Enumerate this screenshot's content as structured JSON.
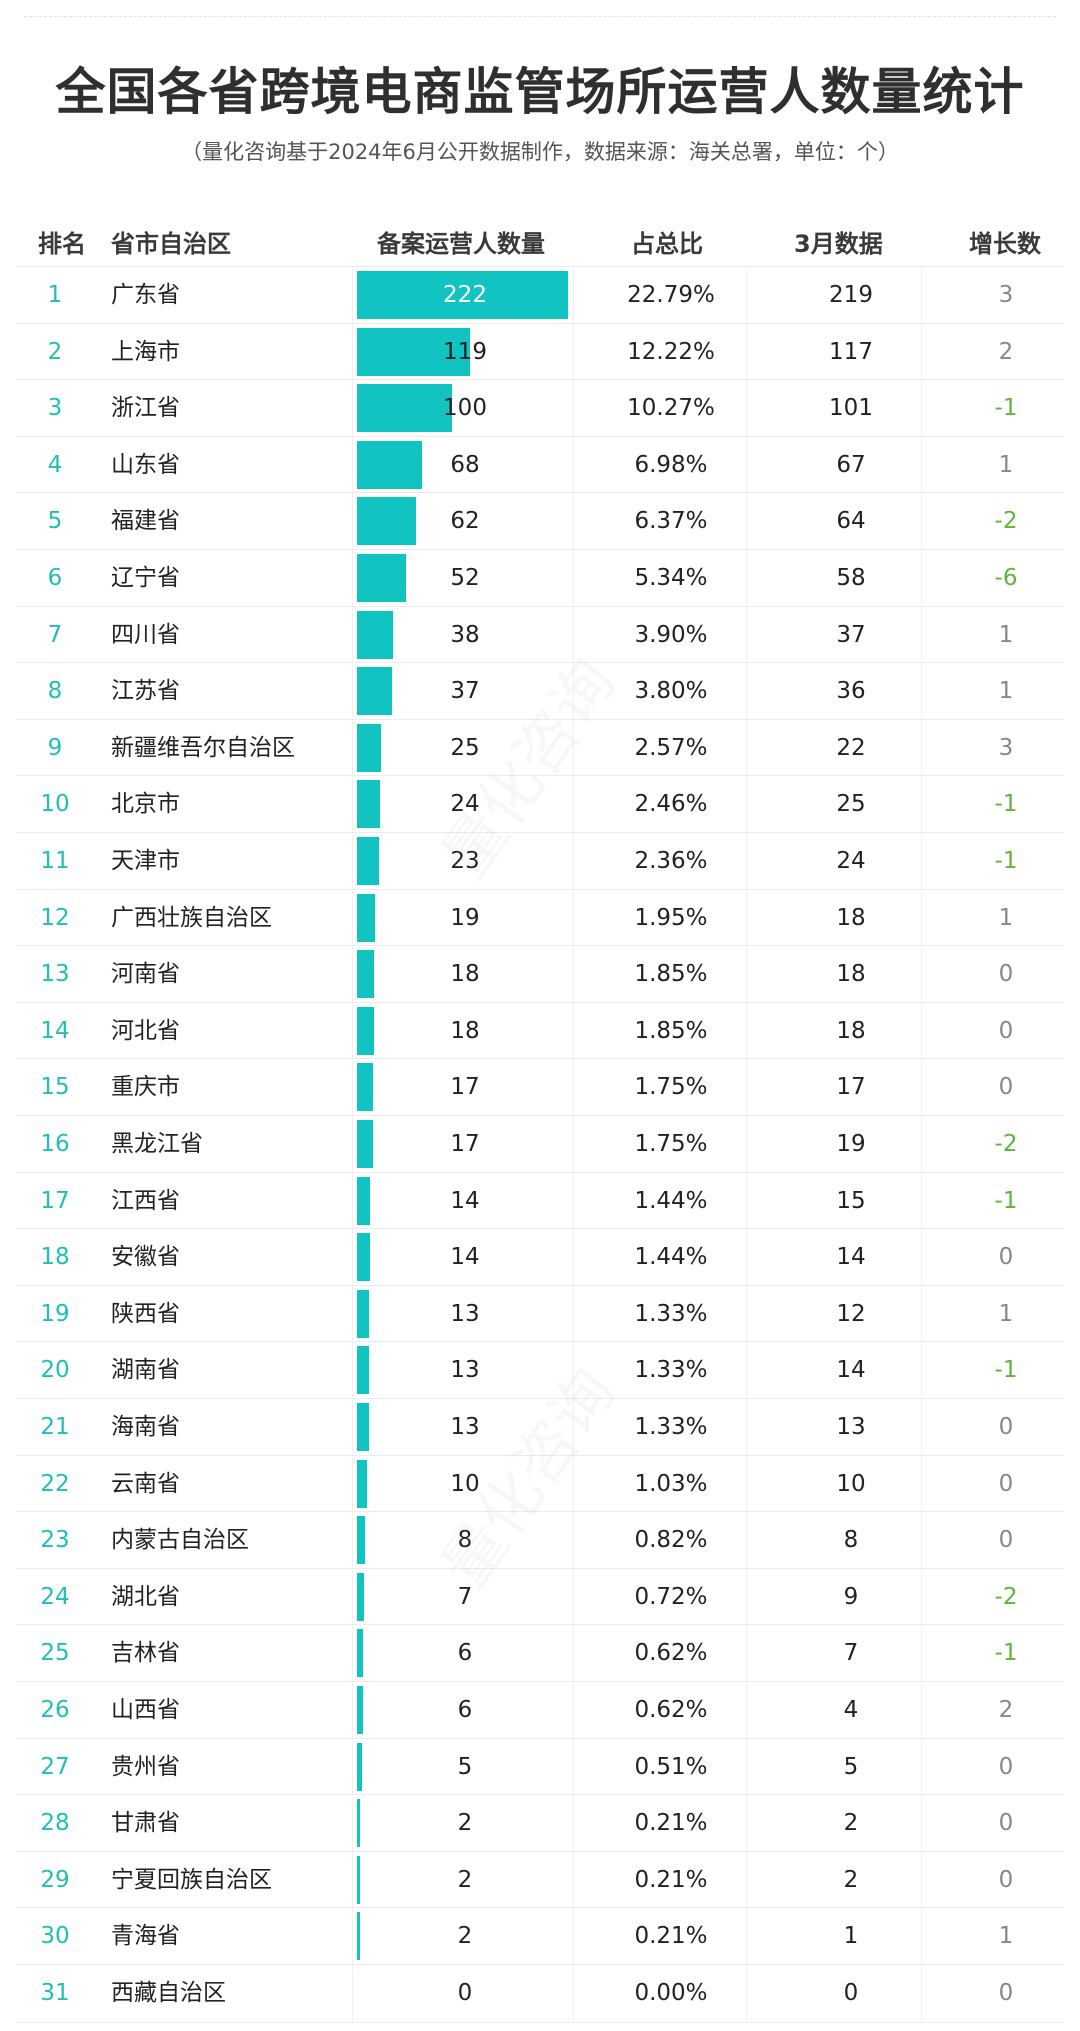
{
  "header": {
    "title": "全国各省跨境电商监管场所运营人数量统计",
    "subtitle": "（量化咨询基于2024年6月公开数据制作，数据来源：海关总署，单位：个）"
  },
  "watermark": "量化咨询",
  "colors": {
    "bar": "#12c4c1",
    "rank": "#1fbfb8",
    "negative": "#5fb536",
    "positive": "#888888"
  },
  "chart_data": {
    "type": "table",
    "columns": [
      "排名",
      "省市自治区",
      "备案运营人数量",
      "占总比",
      "3月数据",
      "增长数"
    ],
    "max_value": 222,
    "rows": [
      {
        "rank": "1",
        "name": "广东省",
        "count": 222,
        "share": "22.79%",
        "march": "219",
        "growth": "3"
      },
      {
        "rank": "2",
        "name": "上海市",
        "count": 119,
        "share": "12.22%",
        "march": "117",
        "growth": "2"
      },
      {
        "rank": "3",
        "name": "浙江省",
        "count": 100,
        "share": "10.27%",
        "march": "101",
        "growth": "-1"
      },
      {
        "rank": "4",
        "name": "山东省",
        "count": 68,
        "share": "6.98%",
        "march": "67",
        "growth": "1"
      },
      {
        "rank": "5",
        "name": "福建省",
        "count": 62,
        "share": "6.37%",
        "march": "64",
        "growth": "-2"
      },
      {
        "rank": "6",
        "name": "辽宁省",
        "count": 52,
        "share": "5.34%",
        "march": "58",
        "growth": "-6"
      },
      {
        "rank": "7",
        "name": "四川省",
        "count": 38,
        "share": "3.90%",
        "march": "37",
        "growth": "1"
      },
      {
        "rank": "8",
        "name": "江苏省",
        "count": 37,
        "share": "3.80%",
        "march": "36",
        "growth": "1"
      },
      {
        "rank": "9",
        "name": "新疆维吾尔自治区",
        "count": 25,
        "share": "2.57%",
        "march": "22",
        "growth": "3"
      },
      {
        "rank": "10",
        "name": "北京市",
        "count": 24,
        "share": "2.46%",
        "march": "25",
        "growth": "-1"
      },
      {
        "rank": "11",
        "name": "天津市",
        "count": 23,
        "share": "2.36%",
        "march": "24",
        "growth": "-1"
      },
      {
        "rank": "12",
        "name": "广西壮族自治区",
        "count": 19,
        "share": "1.95%",
        "march": "18",
        "growth": "1"
      },
      {
        "rank": "13",
        "name": "河南省",
        "count": 18,
        "share": "1.85%",
        "march": "18",
        "growth": "0"
      },
      {
        "rank": "14",
        "name": "河北省",
        "count": 18,
        "share": "1.85%",
        "march": "18",
        "growth": "0"
      },
      {
        "rank": "15",
        "name": "重庆市",
        "count": 17,
        "share": "1.75%",
        "march": "17",
        "growth": "0"
      },
      {
        "rank": "16",
        "name": "黑龙江省",
        "count": 17,
        "share": "1.75%",
        "march": "19",
        "growth": "-2"
      },
      {
        "rank": "17",
        "name": "江西省",
        "count": 14,
        "share": "1.44%",
        "march": "15",
        "growth": "-1"
      },
      {
        "rank": "18",
        "name": "安徽省",
        "count": 14,
        "share": "1.44%",
        "march": "14",
        "growth": "0"
      },
      {
        "rank": "19",
        "name": "陕西省",
        "count": 13,
        "share": "1.33%",
        "march": "12",
        "growth": "1"
      },
      {
        "rank": "20",
        "name": "湖南省",
        "count": 13,
        "share": "1.33%",
        "march": "14",
        "growth": "-1"
      },
      {
        "rank": "21",
        "name": "海南省",
        "count": 13,
        "share": "1.33%",
        "march": "13",
        "growth": "0"
      },
      {
        "rank": "22",
        "name": "云南省",
        "count": 10,
        "share": "1.03%",
        "march": "10",
        "growth": "0"
      },
      {
        "rank": "23",
        "name": "内蒙古自治区",
        "count": 8,
        "share": "0.82%",
        "march": "8",
        "growth": "0"
      },
      {
        "rank": "24",
        "name": "湖北省",
        "count": 7,
        "share": "0.72%",
        "march": "9",
        "growth": "-2"
      },
      {
        "rank": "25",
        "name": "吉林省",
        "count": 6,
        "share": "0.62%",
        "march": "7",
        "growth": "-1"
      },
      {
        "rank": "26",
        "name": "山西省",
        "count": 6,
        "share": "0.62%",
        "march": "4",
        "growth": "2"
      },
      {
        "rank": "27",
        "name": "贵州省",
        "count": 5,
        "share": "0.51%",
        "march": "5",
        "growth": "0"
      },
      {
        "rank": "28",
        "name": "甘肃省",
        "count": 2,
        "share": "0.21%",
        "march": "2",
        "growth": "0"
      },
      {
        "rank": "29",
        "name": "宁夏回族自治区",
        "count": 2,
        "share": "0.21%",
        "march": "2",
        "growth": "0"
      },
      {
        "rank": "30",
        "name": "青海省",
        "count": 2,
        "share": "0.21%",
        "march": "1",
        "growth": "1"
      },
      {
        "rank": "31",
        "name": "西藏自治区",
        "count": 0,
        "share": "0.00%",
        "march": "0",
        "growth": "0"
      }
    ]
  }
}
